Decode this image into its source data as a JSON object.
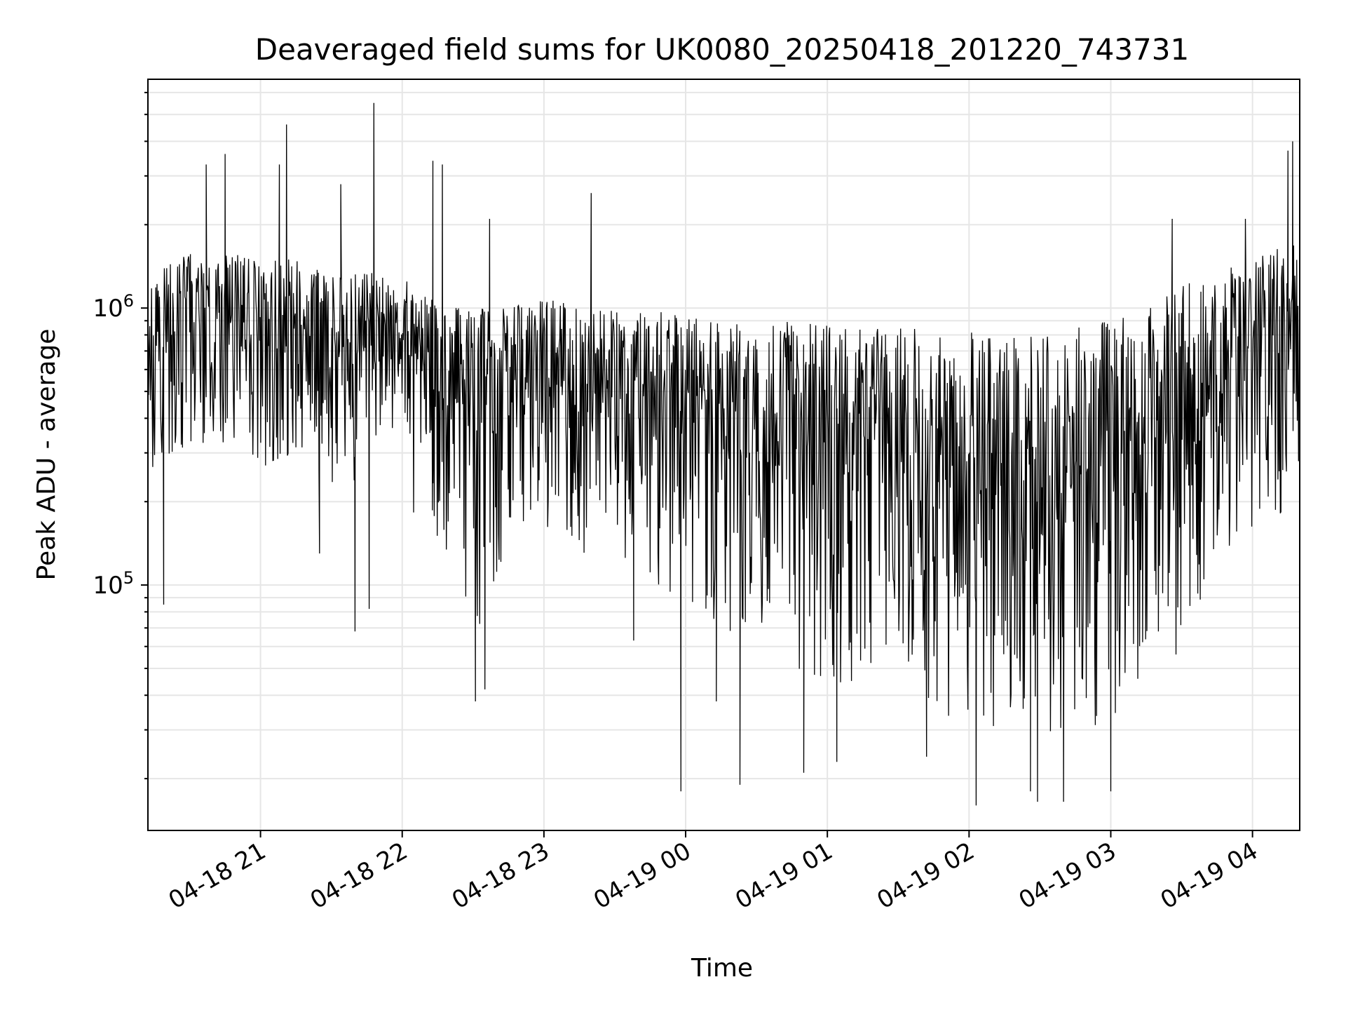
{
  "chart_data": {
    "type": "line",
    "title": "Deaveraged field sums for UK0080_20250418_201220_743731",
    "xlabel": "Time",
    "ylabel": "Peak ADU - average",
    "x_range": [
      "2025-04-18 20:12:20",
      "2025-04-19 04:20:00"
    ],
    "ylim": [
      13000,
      6700000
    ],
    "y_scale": "log",
    "grid": true,
    "x_ticks": [
      {
        "time": "2025-04-18 21:00",
        "label": "04-18 21"
      },
      {
        "time": "2025-04-18 22:00",
        "label": "04-18 22"
      },
      {
        "time": "2025-04-18 23:00",
        "label": "04-18 23"
      },
      {
        "time": "2025-04-19 00:00",
        "label": "04-19 00"
      },
      {
        "time": "2025-04-19 01:00",
        "label": "04-19 01"
      },
      {
        "time": "2025-04-19 02:00",
        "label": "04-19 02"
      },
      {
        "time": "2025-04-19 03:00",
        "label": "04-19 03"
      },
      {
        "time": "2025-04-19 04:00",
        "label": "04-19 04"
      }
    ],
    "y_ticks": [
      {
        "value": 100000,
        "base": "10",
        "exponent": "5"
      },
      {
        "value": 1000000,
        "base": "10",
        "exponent": "6"
      }
    ],
    "series": [
      {
        "color": "#000000",
        "x": [
          "2025-04-18 20:12",
          "2025-04-18 20:30",
          "2025-04-18 20:45",
          "2025-04-18 21:00",
          "2025-04-18 21:15",
          "2025-04-18 21:30",
          "2025-04-18 21:45",
          "2025-04-18 22:00",
          "2025-04-18 22:15",
          "2025-04-18 22:30",
          "2025-04-18 22:45",
          "2025-04-18 23:00",
          "2025-04-18 23:15",
          "2025-04-18 23:30",
          "2025-04-18 23:45",
          "2025-04-19 00:00",
          "2025-04-19 00:15",
          "2025-04-19 00:30",
          "2025-04-19 00:45",
          "2025-04-19 01:00",
          "2025-04-19 01:15",
          "2025-04-19 01:30",
          "2025-04-19 01:45",
          "2025-04-19 02:00",
          "2025-04-19 02:15",
          "2025-04-19 02:30",
          "2025-04-19 02:45",
          "2025-04-19 03:00",
          "2025-04-19 03:15",
          "2025-04-19 03:30",
          "2025-04-19 03:45",
          "2025-04-19 04:00",
          "2025-04-19 04:20"
        ],
        "y": [
          800000,
          900000,
          1000000,
          800000,
          850000,
          750000,
          800000,
          700000,
          600000,
          450000,
          550000,
          600000,
          550000,
          600000,
          600000,
          550000,
          500000,
          450000,
          400000,
          380000,
          350000,
          320000,
          300000,
          280000,
          260000,
          250000,
          270000,
          300000,
          350000,
          450000,
          650000,
          800000,
          1000000
        ],
        "y_high": [
          1400000,
          1600000,
          1600000,
          1500000,
          1500000,
          1300000,
          1400000,
          1300000,
          1100000,
          1000000,
          1000000,
          1100000,
          1000000,
          1000000,
          1000000,
          950000,
          950000,
          900000,
          900000,
          900000,
          850000,
          850000,
          850000,
          850000,
          800000,
          800000,
          850000,
          900000,
          1000000,
          1200000,
          1400000,
          1500000,
          1800000
        ],
        "y_low": [
          250000,
          300000,
          300000,
          250000,
          280000,
          220000,
          250000,
          200000,
          150000,
          60000,
          120000,
          150000,
          130000,
          130000,
          100000,
          90000,
          70000,
          60000,
          50000,
          45000,
          40000,
          38000,
          35000,
          32000,
          30000,
          28000,
          30000,
          32000,
          38000,
          60000,
          120000,
          150000,
          200000
        ],
        "spikes": [
          {
            "time": "2025-04-18 20:19",
            "value": 85000
          },
          {
            "time": "2025-04-18 20:37",
            "value": 3300000
          },
          {
            "time": "2025-04-18 20:45",
            "value": 3600000
          },
          {
            "time": "2025-04-18 21:08",
            "value": 3300000
          },
          {
            "time": "2025-04-18 21:11",
            "value": 4600000
          },
          {
            "time": "2025-04-18 21:25",
            "value": 130000
          },
          {
            "time": "2025-04-18 21:34",
            "value": 2800000
          },
          {
            "time": "2025-04-18 21:40",
            "value": 68000
          },
          {
            "time": "2025-04-18 21:46",
            "value": 82000
          },
          {
            "time": "2025-04-18 21:48",
            "value": 5500000
          },
          {
            "time": "2025-04-18 22:13",
            "value": 3400000
          },
          {
            "time": "2025-04-18 22:17",
            "value": 3300000
          },
          {
            "time": "2025-04-18 22:31",
            "value": 38000
          },
          {
            "time": "2025-04-18 22:35",
            "value": 42000
          },
          {
            "time": "2025-04-18 22:37",
            "value": 2100000
          },
          {
            "time": "2025-04-18 23:20",
            "value": 2600000
          },
          {
            "time": "2025-04-18 23:38",
            "value": 63000
          },
          {
            "time": "2025-04-18 23:58",
            "value": 18000
          },
          {
            "time": "2025-04-19 00:13",
            "value": 38000
          },
          {
            "time": "2025-04-19 00:23",
            "value": 19000
          },
          {
            "time": "2025-04-19 00:50",
            "value": 21000
          },
          {
            "time": "2025-04-19 01:04",
            "value": 23000
          },
          {
            "time": "2025-04-19 01:42",
            "value": 24000
          },
          {
            "time": "2025-04-19 02:03",
            "value": 16000
          },
          {
            "time": "2025-04-19 02:26",
            "value": 18000
          },
          {
            "time": "2025-04-19 02:29",
            "value": 16500
          },
          {
            "time": "2025-04-19 02:40",
            "value": 16500
          },
          {
            "time": "2025-04-19 03:00",
            "value": 18000
          },
          {
            "time": "2025-04-19 03:26",
            "value": 2100000
          },
          {
            "time": "2025-04-19 03:57",
            "value": 2100000
          },
          {
            "time": "2025-04-19 04:15",
            "value": 3700000
          },
          {
            "time": "2025-04-19 04:17",
            "value": 4000000
          }
        ]
      }
    ]
  }
}
